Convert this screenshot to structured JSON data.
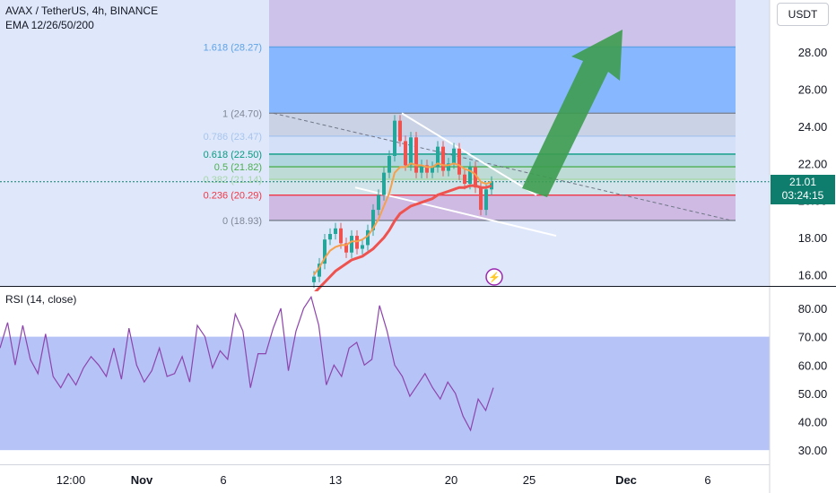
{
  "header": {
    "title": "AVAX / TetherUS, 4h, BINANCE",
    "indicator": "EMA 12/26/50/200"
  },
  "currency_button": "USDT",
  "last_price": {
    "value": "21.01",
    "countdown": "03:24:15"
  },
  "rsi_label": "RSI (14, close)",
  "colors": {
    "up": "#26a69a",
    "down": "#ef5350",
    "ema_fast": "#f6a04d",
    "ema_slow": "#ef5350",
    "fib_band": "#b7c4f2",
    "fib_top": "#6aa7ff",
    "arrow": "#3d9c4f",
    "rsi_line": "#8e44ad"
  },
  "chart_data": [
    {
      "type": "candlestick",
      "title": "AVAX / TetherUS, 4h, BINANCE",
      "y_axis": {
        "ticks": [
          "16.00",
          "18.00",
          "20.00",
          "22.00",
          "24.00",
          "26.00",
          "28.00"
        ],
        "ylim": [
          15.4,
          30.8
        ],
        "position": "right"
      },
      "x_axis": {
        "ticks": [
          "12:00",
          "Nov",
          "6",
          "13",
          "20",
          "25",
          "Dec",
          "6"
        ]
      },
      "fib_levels": [
        {
          "label": "1.618 (28.27)",
          "value": 28.27,
          "color": "#5fa2e6"
        },
        {
          "label": "1 (24.70)",
          "value": 24.7,
          "color": "#7f8695"
        },
        {
          "label": "0.786 (23.47)",
          "value": 23.47,
          "color": "#a7c4ec"
        },
        {
          "label": "0.618 (22.50)",
          "value": 22.5,
          "color": "#089981"
        },
        {
          "label": "0.5 (21.82)",
          "value": 21.82,
          "color": "#4caf50"
        },
        {
          "label": "0.382 (21.14)",
          "value": 21.14,
          "color": "#a5d6a7"
        },
        {
          "label": "0.236 (20.29)",
          "value": 20.29,
          "color": "#f23645"
        },
        {
          "label": "0 (18.93)",
          "value": 18.93,
          "color": "#7f8695"
        }
      ],
      "series": [
        {
          "name": "AVAXUSDT",
          "close": [
            15.9,
            16.6,
            17.9,
            18.2,
            18.5,
            17.7,
            17.2,
            18.1,
            17.4,
            17.6,
            18.4,
            19.5,
            20.3,
            21.5,
            22.4,
            24.3,
            23.2,
            21.9,
            23.4,
            21.5,
            21.9,
            21.5,
            21.8,
            22.9,
            21.6,
            22.0,
            22.8,
            21.4,
            20.9,
            21.8,
            20.7,
            19.5,
            20.6,
            21.0
          ]
        },
        {
          "name": "EMA 12",
          "values": [
            16.0,
            16.4,
            16.9,
            17.3,
            17.5,
            17.6,
            17.6,
            17.8,
            17.8,
            17.9,
            18.1,
            18.5,
            19.0,
            19.7,
            20.4,
            21.5,
            21.8,
            21.8,
            22.0,
            21.9,
            21.9,
            21.8,
            21.8,
            22.0,
            21.9,
            21.9,
            22.0,
            21.9,
            21.7,
            21.6,
            21.4,
            21.0,
            20.9,
            21.0
          ]
        },
        {
          "name": "EMA 50",
          "values": [
            15.0,
            15.3,
            15.6,
            15.9,
            16.2,
            16.4,
            16.6,
            16.8,
            16.9,
            17.0,
            17.2,
            17.4,
            17.7,
            18.0,
            18.4,
            18.9,
            19.3,
            19.5,
            19.7,
            19.8,
            19.9,
            20.0,
            20.1,
            20.3,
            20.4,
            20.5,
            20.6,
            20.7,
            20.7,
            20.8,
            20.8,
            20.7,
            20.7,
            20.8
          ]
        }
      ]
    },
    {
      "type": "line",
      "title": "RSI (14, close)",
      "y_axis": {
        "ticks": [
          "30.00",
          "40.00",
          "50.00",
          "60.00",
          "70.00",
          "80.00"
        ],
        "ylim": [
          25,
          86
        ],
        "position": "right"
      },
      "series": [
        {
          "name": "RSI",
          "values": [
            66,
            75,
            60,
            74,
            62,
            57,
            71,
            56,
            52,
            57,
            53,
            59,
            63,
            60,
            56,
            66,
            55,
            73,
            60,
            54,
            58,
            66,
            56,
            57,
            63,
            54,
            74,
            70,
            59,
            65,
            62,
            78,
            72,
            52,
            64,
            64,
            73,
            80,
            58,
            72,
            80,
            84,
            74,
            53,
            60,
            56,
            66,
            68,
            60,
            62,
            81,
            72,
            60,
            56,
            49,
            53,
            57,
            52,
            48,
            54,
            50,
            42,
            37,
            48,
            44,
            52
          ]
        }
      ]
    }
  ]
}
